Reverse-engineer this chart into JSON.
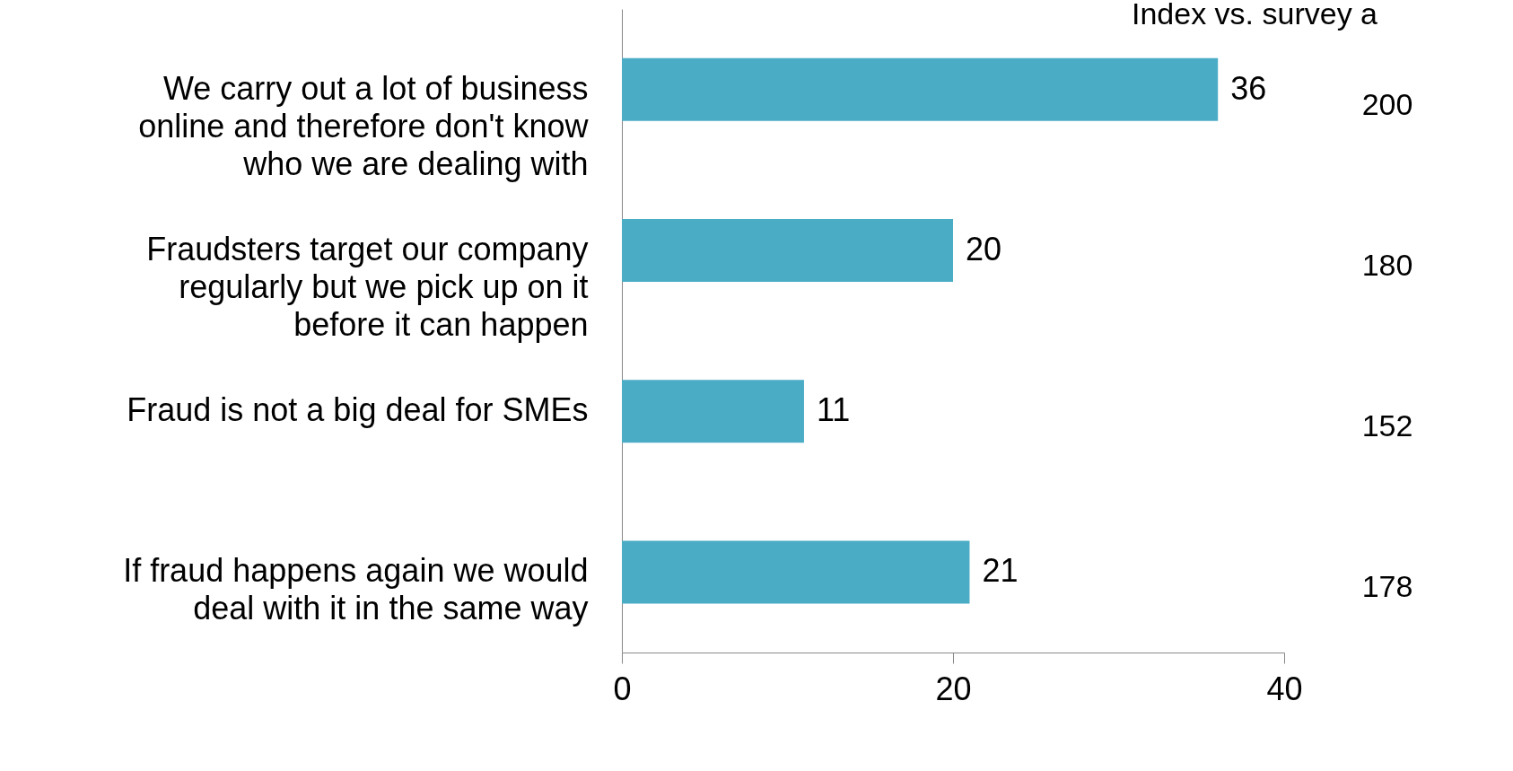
{
  "chart_data": {
    "type": "bar",
    "orientation": "horizontal",
    "categories": [
      "We carry out a lot of business online and therefore don't know who we are dealing with",
      "Fraudsters target our company regularly but we pick up on it before it can happen",
      "Fraud is not a big deal for SMEs",
      "If fraud happens again we would deal with it in the same way"
    ],
    "values": [
      36,
      20,
      11,
      21
    ],
    "color": "#4bacc6",
    "data_labels": true,
    "xlim": [
      0,
      40
    ],
    "xticks": [
      0,
      20,
      40
    ],
    "grid": false,
    "annotations": [
      "Index vs. survey a",
      "200",
      "180",
      "152",
      "178"
    ]
  }
}
